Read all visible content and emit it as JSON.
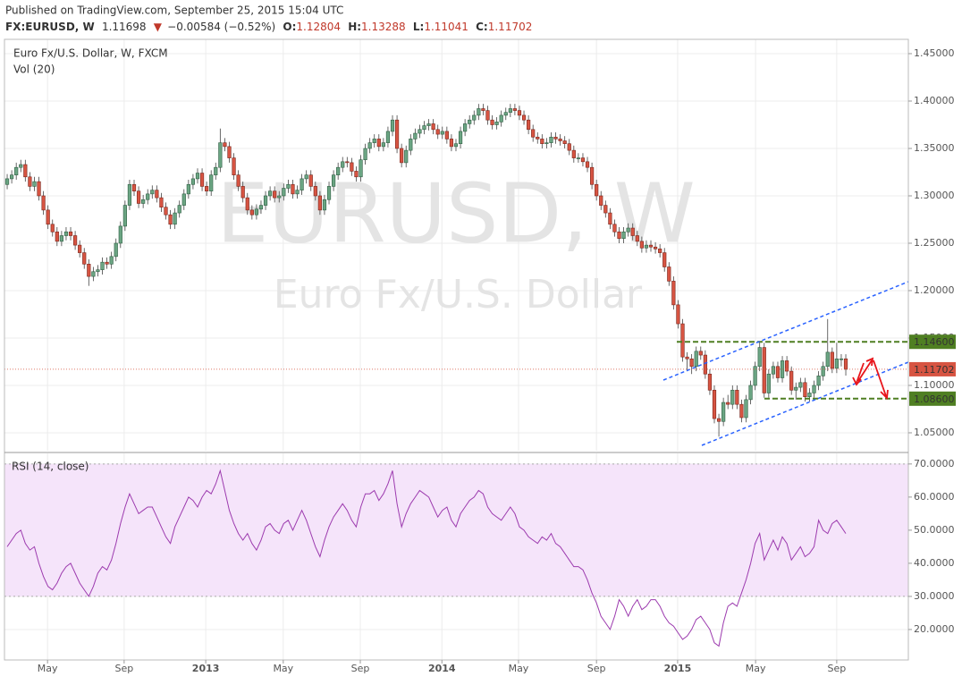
{
  "header": {
    "published": "Published on TradingView.com, September 25, 2015 15:04 UTC",
    "symbol": "FX:EURUSD, W",
    "last": "1.11698",
    "arrow": "▼",
    "change": "−0.00584 (−0.52%)",
    "o_label": "O:",
    "o": "1.12804",
    "h_label": "H:",
    "h": "1.13288",
    "l_label": "L:",
    "l": "1.11041",
    "c_label": "C:",
    "c": "1.11702"
  },
  "chart_data": [
    {
      "type": "candlestick",
      "title": "Euro Fx/U.S. Dollar, W, FXCM",
      "indicator": "Vol (20)",
      "watermark": "EURUSD, W",
      "watermark_subtitle": "Euro Fx/U.S. Dollar",
      "up_color": "#6ba583",
      "down_color": "#d75442",
      "grid": true,
      "xlim": [
        -0.6,
        198.8
      ],
      "ylim": [
        1.0311,
        1.4651
      ],
      "yticks": [
        {
          "value": 1.05,
          "label": "1.05000"
        },
        {
          "value": 1.1,
          "label": "1.10000"
        },
        {
          "value": 1.15,
          "label": "1.15000"
        },
        {
          "value": 1.2,
          "label": "1.20000"
        },
        {
          "value": 1.25,
          "label": "1.25000"
        },
        {
          "value": 1.3,
          "label": "1.30000"
        },
        {
          "value": 1.35,
          "label": "1.35000"
        },
        {
          "value": 1.4,
          "label": "1.40000"
        },
        {
          "value": 1.45,
          "label": "1.45000"
        }
      ],
      "levels": [
        {
          "value": 1.146,
          "label": "1.14600",
          "color": "#4f7f22"
        },
        {
          "value": 1.086,
          "label": "1.08600",
          "color": "#4f7f22"
        }
      ],
      "last_price": {
        "value": 1.11702,
        "label": "1.11702",
        "color": "#d75442"
      },
      "open": [
        1.312,
        1.318,
        1.322,
        1.33,
        1.333,
        1.32,
        1.31,
        1.315,
        1.3,
        1.285,
        1.27,
        1.262,
        1.252,
        1.258,
        1.262,
        1.258,
        1.248,
        1.24,
        1.228,
        1.215,
        1.22,
        1.222,
        1.23,
        1.228,
        1.236,
        1.25,
        1.268,
        1.29,
        1.312,
        1.305,
        1.292,
        1.296,
        1.302,
        1.306,
        1.298,
        1.288,
        1.28,
        1.27,
        1.282,
        1.29,
        1.302,
        1.312,
        1.318,
        1.324,
        1.31,
        1.305,
        1.322,
        1.33,
        1.356,
        1.352,
        1.34,
        1.322,
        1.31,
        1.298,
        1.285,
        1.28,
        1.286,
        1.29,
        1.3,
        1.305,
        1.298,
        1.3,
        1.308,
        1.312,
        1.302,
        1.306,
        1.318,
        1.322,
        1.31,
        1.3,
        1.285,
        1.296,
        1.31,
        1.322,
        1.33,
        1.336,
        1.335,
        1.326,
        1.32,
        1.338,
        1.35,
        1.356,
        1.36,
        1.352,
        1.356,
        1.368,
        1.38,
        1.35,
        1.335,
        1.348,
        1.36,
        1.366,
        1.37,
        1.374,
        1.376,
        1.37,
        1.365,
        1.368,
        1.36,
        1.352,
        1.355,
        1.368,
        1.376,
        1.38,
        1.385,
        1.392,
        1.39,
        1.38,
        1.375,
        1.378,
        1.385,
        1.388,
        1.392,
        1.39,
        1.385,
        1.38,
        1.37,
        1.362,
        1.36,
        1.355,
        1.356,
        1.362,
        1.36,
        1.358,
        1.355,
        1.348,
        1.34,
        1.34,
        1.336,
        1.33,
        1.312,
        1.3,
        1.29,
        1.282,
        1.27,
        1.262,
        1.255,
        1.262,
        1.266,
        1.258,
        1.252,
        1.245,
        1.248,
        1.246,
        1.244,
        1.24,
        1.225,
        1.21,
        1.185,
        1.165,
        1.13,
        1.128,
        1.12,
        1.136,
        1.132,
        1.112,
        1.095,
        1.065,
        1.062,
        1.082,
        1.08,
        1.095,
        1.08,
        1.066,
        1.085,
        1.1,
        1.12,
        1.14,
        1.092,
        1.112,
        1.12,
        1.108,
        1.126,
        1.115,
        1.095,
        1.098,
        1.103,
        1.088,
        1.092,
        1.1,
        1.11,
        1.12,
        1.135,
        1.118,
        1.128,
        1.12804
      ],
      "high": [
        1.323,
        1.327,
        1.335,
        1.338,
        1.338,
        1.325,
        1.32,
        1.32,
        1.305,
        1.29,
        1.275,
        1.267,
        1.263,
        1.267,
        1.267,
        1.263,
        1.253,
        1.245,
        1.233,
        1.225,
        1.227,
        1.235,
        1.235,
        1.241,
        1.255,
        1.273,
        1.295,
        1.317,
        1.317,
        1.31,
        1.301,
        1.307,
        1.311,
        1.311,
        1.303,
        1.293,
        1.285,
        1.287,
        1.295,
        1.307,
        1.317,
        1.323,
        1.329,
        1.329,
        1.315,
        1.327,
        1.335,
        1.371,
        1.361,
        1.357,
        1.345,
        1.327,
        1.315,
        1.303,
        1.29,
        1.291,
        1.295,
        1.305,
        1.31,
        1.31,
        1.305,
        1.313,
        1.317,
        1.317,
        1.311,
        1.323,
        1.327,
        1.327,
        1.315,
        1.305,
        1.301,
        1.315,
        1.327,
        1.335,
        1.341,
        1.341,
        1.34,
        1.331,
        1.343,
        1.355,
        1.361,
        1.365,
        1.365,
        1.361,
        1.373,
        1.385,
        1.385,
        1.355,
        1.353,
        1.365,
        1.371,
        1.375,
        1.379,
        1.381,
        1.381,
        1.375,
        1.373,
        1.373,
        1.365,
        1.36,
        1.373,
        1.381,
        1.385,
        1.39,
        1.397,
        1.397,
        1.395,
        1.385,
        1.383,
        1.39,
        1.393,
        1.397,
        1.397,
        1.395,
        1.39,
        1.385,
        1.375,
        1.367,
        1.365,
        1.361,
        1.367,
        1.367,
        1.365,
        1.363,
        1.36,
        1.353,
        1.345,
        1.345,
        1.341,
        1.335,
        1.317,
        1.305,
        1.295,
        1.287,
        1.275,
        1.267,
        1.267,
        1.271,
        1.271,
        1.263,
        1.257,
        1.253,
        1.253,
        1.251,
        1.249,
        1.245,
        1.23,
        1.215,
        1.19,
        1.17,
        1.135,
        1.133,
        1.141,
        1.141,
        1.137,
        1.117,
        1.1,
        1.07,
        1.087,
        1.09,
        1.1,
        1.1,
        1.085,
        1.09,
        1.105,
        1.125,
        1.146,
        1.145,
        1.117,
        1.125,
        1.125,
        1.131,
        1.131,
        1.12,
        1.103,
        1.108,
        1.108,
        1.097,
        1.105,
        1.115,
        1.125,
        1.17,
        1.14,
        1.145,
        1.133,
        1.13288
      ],
      "low": [
        1.307,
        1.313,
        1.317,
        1.325,
        1.315,
        1.305,
        1.305,
        1.295,
        1.28,
        1.265,
        1.257,
        1.247,
        1.247,
        1.253,
        1.253,
        1.243,
        1.235,
        1.223,
        1.205,
        1.21,
        1.215,
        1.217,
        1.223,
        1.223,
        1.231,
        1.245,
        1.263,
        1.285,
        1.3,
        1.287,
        1.287,
        1.291,
        1.297,
        1.293,
        1.283,
        1.275,
        1.265,
        1.265,
        1.277,
        1.285,
        1.297,
        1.307,
        1.313,
        1.305,
        1.3,
        1.3,
        1.317,
        1.325,
        1.347,
        1.335,
        1.317,
        1.305,
        1.293,
        1.28,
        1.275,
        1.275,
        1.281,
        1.285,
        1.295,
        1.293,
        1.293,
        1.295,
        1.303,
        1.297,
        1.297,
        1.301,
        1.313,
        1.305,
        1.295,
        1.28,
        1.28,
        1.291,
        1.305,
        1.317,
        1.325,
        1.33,
        1.321,
        1.315,
        1.315,
        1.333,
        1.345,
        1.351,
        1.347,
        1.347,
        1.351,
        1.363,
        1.345,
        1.33,
        1.33,
        1.343,
        1.355,
        1.361,
        1.365,
        1.369,
        1.365,
        1.36,
        1.36,
        1.355,
        1.347,
        1.347,
        1.35,
        1.363,
        1.371,
        1.375,
        1.38,
        1.385,
        1.375,
        1.37,
        1.37,
        1.373,
        1.38,
        1.383,
        1.385,
        1.38,
        1.375,
        1.365,
        1.357,
        1.355,
        1.35,
        1.35,
        1.351,
        1.355,
        1.353,
        1.35,
        1.343,
        1.335,
        1.335,
        1.331,
        1.325,
        1.307,
        1.295,
        1.285,
        1.277,
        1.265,
        1.257,
        1.25,
        1.25,
        1.257,
        1.253,
        1.247,
        1.24,
        1.24,
        1.241,
        1.239,
        1.235,
        1.22,
        1.205,
        1.18,
        1.16,
        1.125,
        1.115,
        1.112,
        1.115,
        1.127,
        1.107,
        1.09,
        1.06,
        1.046,
        1.057,
        1.075,
        1.075,
        1.075,
        1.061,
        1.061,
        1.08,
        1.095,
        1.115,
        1.087,
        1.087,
        1.107,
        1.103,
        1.103,
        1.11,
        1.09,
        1.085,
        1.093,
        1.083,
        1.083,
        1.087,
        1.095,
        1.105,
        1.115,
        1.113,
        1.113,
        1.12,
        1.11041
      ],
      "close": [
        1.318,
        1.322,
        1.33,
        1.333,
        1.32,
        1.31,
        1.315,
        1.3,
        1.285,
        1.27,
        1.262,
        1.252,
        1.258,
        1.262,
        1.258,
        1.248,
        1.24,
        1.228,
        1.215,
        1.22,
        1.222,
        1.23,
        1.228,
        1.236,
        1.25,
        1.268,
        1.29,
        1.312,
        1.305,
        1.292,
        1.296,
        1.302,
        1.306,
        1.298,
        1.288,
        1.28,
        1.27,
        1.282,
        1.29,
        1.302,
        1.312,
        1.318,
        1.324,
        1.31,
        1.305,
        1.322,
        1.33,
        1.356,
        1.352,
        1.34,
        1.322,
        1.31,
        1.298,
        1.285,
        1.28,
        1.286,
        1.29,
        1.3,
        1.305,
        1.298,
        1.3,
        1.308,
        1.312,
        1.302,
        1.306,
        1.318,
        1.322,
        1.31,
        1.3,
        1.285,
        1.296,
        1.31,
        1.322,
        1.33,
        1.336,
        1.335,
        1.326,
        1.32,
        1.338,
        1.35,
        1.356,
        1.36,
        1.352,
        1.356,
        1.368,
        1.38,
        1.35,
        1.335,
        1.348,
        1.36,
        1.366,
        1.37,
        1.374,
        1.376,
        1.37,
        1.365,
        1.368,
        1.36,
        1.352,
        1.355,
        1.368,
        1.376,
        1.38,
        1.385,
        1.392,
        1.39,
        1.38,
        1.375,
        1.378,
        1.385,
        1.388,
        1.392,
        1.39,
        1.385,
        1.38,
        1.37,
        1.362,
        1.36,
        1.355,
        1.356,
        1.362,
        1.36,
        1.358,
        1.355,
        1.348,
        1.34,
        1.34,
        1.336,
        1.33,
        1.312,
        1.3,
        1.29,
        1.282,
        1.27,
        1.262,
        1.255,
        1.262,
        1.266,
        1.258,
        1.252,
        1.245,
        1.248,
        1.246,
        1.244,
        1.24,
        1.225,
        1.21,
        1.185,
        1.165,
        1.13,
        1.128,
        1.12,
        1.136,
        1.132,
        1.112,
        1.095,
        1.065,
        1.062,
        1.082,
        1.08,
        1.095,
        1.08,
        1.066,
        1.085,
        1.1,
        1.12,
        1.14,
        1.092,
        1.112,
        1.12,
        1.108,
        1.126,
        1.115,
        1.095,
        1.098,
        1.103,
        1.088,
        1.092,
        1.1,
        1.11,
        1.12,
        1.135,
        1.118,
        1.128,
        1.12804,
        1.11702
      ]
    },
    {
      "type": "line",
      "title": "RSI (14, close)",
      "color": "#9c3aae",
      "band": [
        30,
        70
      ],
      "band_color": "#f5e4fa",
      "grid": true,
      "xlim": [
        -0.6,
        198.8
      ],
      "ylim": [
        10.8,
        73.2
      ],
      "yticks": [
        {
          "value": 20,
          "label": "20.0000"
        },
        {
          "value": 30,
          "label": "30.0000"
        },
        {
          "value": 40,
          "label": "40.0000"
        },
        {
          "value": 50,
          "label": "50.0000"
        },
        {
          "value": 60,
          "label": "60.0000"
        },
        {
          "value": 70,
          "label": "70.0000"
        }
      ],
      "xticks": [
        {
          "value": 8.9,
          "label": "May"
        },
        {
          "value": 25.8,
          "label": "Sep"
        },
        {
          "value": 43.8,
          "label": "2013"
        },
        {
          "value": 60.9,
          "label": "May"
        },
        {
          "value": 77.9,
          "label": "Sep"
        },
        {
          "value": 95.9,
          "label": "2014"
        },
        {
          "value": 112.8,
          "label": "May"
        },
        {
          "value": 130,
          "label": "Sep"
        },
        {
          "value": 147.9,
          "label": "2015"
        },
        {
          "value": 165.1,
          "label": "May"
        },
        {
          "value": 183,
          "label": "Sep"
        }
      ],
      "values": [
        45,
        47,
        49,
        50,
        46,
        44,
        45,
        40,
        36,
        33,
        32,
        34,
        37,
        39,
        40,
        37,
        34,
        32,
        30,
        33,
        37,
        39,
        38,
        41,
        46,
        52,
        57,
        61,
        58,
        55,
        56,
        57,
        57,
        54,
        51,
        48,
        46,
        51,
        54,
        57,
        60,
        59,
        57,
        60,
        62,
        61,
        64,
        68,
        62,
        56,
        52,
        49,
        47,
        49,
        46,
        44,
        47,
        51,
        52,
        50,
        49,
        52,
        53,
        50,
        53,
        56,
        53,
        49,
        45,
        42,
        47,
        51,
        54,
        56,
        58,
        56,
        53,
        51,
        57,
        61,
        61,
        62,
        59,
        61,
        64,
        68,
        58,
        51,
        55,
        58,
        60,
        62,
        61,
        60,
        57,
        54,
        56,
        57,
        53,
        51,
        55,
        57,
        59,
        60,
        62,
        61,
        57,
        55,
        54,
        53,
        55,
        57,
        55,
        51,
        50,
        48,
        47,
        46,
        48,
        47,
        49,
        46,
        45,
        43,
        41,
        39,
        39,
        38,
        35,
        31,
        28,
        24,
        22,
        20,
        24,
        29,
        27,
        24,
        27,
        29,
        26,
        27,
        29,
        29,
        27,
        24,
        22,
        21,
        19,
        17,
        18,
        20,
        23,
        24,
        22,
        20,
        16,
        15,
        22,
        27,
        28,
        27,
        31,
        35,
        40,
        46,
        49,
        41,
        44,
        47,
        44,
        48,
        46,
        41,
        43,
        45,
        42,
        43,
        45,
        53,
        50,
        49,
        52,
        53,
        51,
        49
      ]
    }
  ]
}
